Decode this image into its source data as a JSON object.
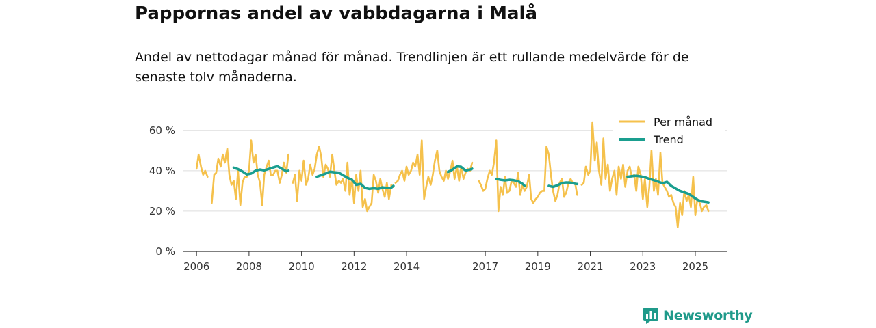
{
  "chart_data": {
    "type": "line",
    "title": "Pappornas andel av vabbdagarna i Malå",
    "subtitle": "Andel av nettodagar månad för månad. Trendlinjen är ett rullande medelvärde för de senaste tolv månaderna.",
    "x_range": [
      2005.5,
      2026.2
    ],
    "ylim": [
      0,
      65
    ],
    "y_ticks": [
      0,
      20,
      40,
      60
    ],
    "y_tick_labels": [
      "0 %",
      "20 %",
      "40 %",
      "60 %"
    ],
    "x_ticks": [
      2006,
      2008,
      2010,
      2012,
      2014,
      2017,
      2019,
      2021,
      2023,
      2025
    ],
    "x_tick_labels": [
      "2006",
      "2008",
      "2010",
      "2012",
      "2014",
      "2017",
      "2019",
      "2021",
      "2023",
      "2025"
    ],
    "legend_position": "top-right",
    "series": [
      {
        "name": "Per månad",
        "color": "#f5c14c",
        "segments": [
          {
            "x": [
              2006.0,
              2006.08,
              2006.17,
              2006.25,
              2006.33,
              2006.42
            ],
            "y": [
              41,
              48,
              42,
              38,
              40,
              37
            ]
          },
          {
            "x": [
              2006.58,
              2006.67,
              2006.75,
              2006.83,
              2006.92,
              2007.0,
              2007.08,
              2007.17,
              2007.25,
              2007.33,
              2007.42,
              2007.5,
              2007.58,
              2007.67,
              2007.75,
              2007.83,
              2007.92,
              2008.0,
              2008.08,
              2008.17,
              2008.25,
              2008.33,
              2008.42,
              2008.5,
              2008.58,
              2008.67,
              2008.75,
              2008.83,
              2008.92,
              2009.0,
              2009.08,
              2009.17,
              2009.25,
              2009.33,
              2009.42,
              2009.5
            ],
            "y": [
              24,
              38,
              39,
              46,
              42,
              48,
              44,
              51,
              38,
              33,
              35,
              26,
              40,
              23,
              34,
              37,
              37,
              40,
              55,
              44,
              48,
              38,
              34,
              23,
              38,
              42,
              45,
              38,
              38,
              40,
              40,
              34,
              38,
              44,
              39,
              48
            ]
          },
          {
            "x": [
              2009.67,
              2009.75,
              2009.83,
              2009.92,
              2010.0,
              2010.08,
              2010.17,
              2010.25,
              2010.33,
              2010.42,
              2010.5,
              2010.58,
              2010.67,
              2010.75,
              2010.83,
              2010.92,
              2011.0,
              2011.08,
              2011.17,
              2011.25,
              2011.33,
              2011.42,
              2011.5,
              2011.58,
              2011.67,
              2011.75,
              2011.83,
              2011.92,
              2012.0,
              2012.08,
              2012.17,
              2012.25,
              2012.33,
              2012.42,
              2012.5,
              2012.58,
              2012.67,
              2012.75,
              2012.83,
              2012.92,
              2013.0,
              2013.08,
              2013.17,
              2013.25,
              2013.33,
              2013.42,
              2013.5
            ],
            "y": [
              34,
              38,
              25,
              40,
              35,
              45,
              33,
              36,
              43,
              38,
              41,
              48,
              52,
              47,
              37,
              43,
              41,
              37,
              48,
              40,
              33,
              35,
              34,
              36,
              30,
              44,
              28,
              36,
              24,
              38,
              30,
              40,
              22,
              26,
              20,
              22,
              24,
              38,
              35,
              29,
              36,
              31,
              27,
              34,
              26,
              33,
              32
            ]
          },
          {
            "x": [
              2013.58,
              2013.67,
              2013.75,
              2013.83,
              2013.92,
              2014.0,
              2014.08,
              2014.17,
              2014.25,
              2014.33,
              2014.42,
              2014.5,
              2014.58,
              2014.67,
              2014.75,
              2014.83,
              2014.92,
              2015.0,
              2015.08,
              2015.17,
              2015.25,
              2015.33,
              2015.42,
              2015.5,
              2015.58,
              2015.67,
              2015.75,
              2015.83,
              2015.92,
              2016.0,
              2016.08,
              2016.17,
              2016.25,
              2016.33,
              2016.42,
              2016.5
            ],
            "y": [
              34,
              35,
              38,
              40,
              35,
              42,
              38,
              40,
              44,
              42,
              48,
              38,
              55,
              26,
              32,
              37,
              33,
              38,
              45,
              50,
              40,
              37,
              35,
              40,
              36,
              40,
              45,
              36,
              42,
              35,
              42,
              36,
              39,
              41,
              40,
              44
            ]
          },
          {
            "x": [
              2016.75,
              2016.83,
              2016.92,
              2017.0,
              2017.08,
              2017.17,
              2017.25,
              2017.33,
              2017.42,
              2017.5,
              2017.58,
              2017.67,
              2017.75,
              2017.83,
              2017.92,
              2018.0,
              2018.08,
              2018.17,
              2018.25,
              2018.33,
              2018.42,
              2018.5,
              2018.58,
              2018.67,
              2018.75,
              2018.83,
              2018.92,
              2019.0,
              2019.08,
              2019.17,
              2019.25,
              2019.33,
              2019.42,
              2019.5,
              2019.58,
              2019.67,
              2019.75,
              2019.83,
              2019.92,
              2020.0,
              2020.08,
              2020.17,
              2020.25,
              2020.33,
              2020.42,
              2020.5
            ],
            "y": [
              35,
              33,
              30,
              31,
              36,
              40,
              38,
              44,
              55,
              20,
              32,
              28,
              37,
              29,
              30,
              35,
              34,
              32,
              39,
              28,
              33,
              30,
              32,
              38,
              26,
              24,
              26,
              27,
              29,
              30,
              30,
              52,
              48,
              38,
              30,
              25,
              28,
              34,
              36,
              27,
              29,
              34,
              36,
              34,
              34,
              28
            ]
          },
          {
            "x": [
              2020.67,
              2020.75,
              2020.83,
              2020.92,
              2021.0,
              2021.08,
              2021.17,
              2021.25,
              2021.33,
              2021.42,
              2021.5,
              2021.58,
              2021.67,
              2021.75,
              2021.83,
              2021.92,
              2022.0,
              2022.08,
              2022.17,
              2022.25,
              2022.33,
              2022.42,
              2022.5,
              2022.58,
              2022.67,
              2022.75,
              2022.83,
              2022.92,
              2023.0,
              2023.08,
              2023.17,
              2023.25,
              2023.33,
              2023.42,
              2023.5,
              2023.58,
              2023.67,
              2023.75,
              2023.83,
              2023.92,
              2024.0,
              2024.08,
              2024.17,
              2024.25,
              2024.33,
              2024.42,
              2024.5,
              2024.58,
              2024.67,
              2024.75,
              2024.83,
              2024.92,
              2025.0,
              2025.08,
              2025.17,
              2025.25,
              2025.33,
              2025.42,
              2025.5
            ],
            "y": [
              33,
              34,
              42,
              38,
              40,
              64,
              45,
              54,
              40,
              33,
              56,
              36,
              43,
              30,
              36,
              40,
              28,
              42,
              36,
              43,
              32,
              40,
              42,
              37,
              38,
              30,
              42,
              38,
              26,
              36,
              22,
              32,
              50,
              30,
              36,
              28,
              49,
              34,
              32,
              30,
              27,
              28,
              24,
              22,
              12,
              24,
              18,
              30,
              25,
              28,
              22,
              37,
              18,
              26,
              24,
              20,
              22,
              23,
              20
            ]
          }
        ]
      },
      {
        "name": "Trend",
        "color": "#1a9e8f",
        "segments": [
          {
            "x": [
              2007.42,
              2007.58,
              2007.75,
              2007.92,
              2008.08,
              2008.25,
              2008.42,
              2008.58,
              2008.75,
              2008.92,
              2009.08,
              2009.25,
              2009.42,
              2009.5
            ],
            "y": [
              41.5,
              40.8,
              39.6,
              38.2,
              38.6,
              40.0,
              40.6,
              40.2,
              40.9,
              41.6,
              42.2,
              41.0,
              39.7,
              40.0
            ]
          },
          {
            "x": [
              2010.58,
              2010.75,
              2010.92,
              2011.08,
              2011.25,
              2011.42,
              2011.58,
              2011.75,
              2011.92,
              2012.08,
              2012.25,
              2012.42,
              2012.58,
              2012.75,
              2012.92,
              2013.08,
              2013.25,
              2013.42,
              2013.5
            ],
            "y": [
              37.0,
              37.8,
              38.6,
              39.5,
              39.2,
              39.0,
              37.8,
              36.5,
              35.5,
              33.0,
              33.5,
              31.5,
              31.0,
              31.3,
              31.0,
              31.8,
              31.5,
              31.6,
              32.5
            ]
          },
          {
            "x": [
              2015.58,
              2015.75,
              2015.92,
              2016.08,
              2016.25,
              2016.42,
              2016.5
            ],
            "y": [
              39.4,
              40.6,
              42.1,
              41.9,
              40.1,
              40.6,
              41.0
            ]
          },
          {
            "x": [
              2017.42,
              2017.58,
              2017.75,
              2017.92,
              2018.08,
              2018.25,
              2018.42,
              2018.5
            ],
            "y": [
              36.0,
              35.5,
              35.2,
              35.5,
              35.3,
              34.8,
              33.5,
              32.5
            ]
          },
          {
            "x": [
              2019.42,
              2019.58,
              2019.75,
              2019.92,
              2020.08,
              2020.25,
              2020.42,
              2020.5
            ],
            "y": [
              32.5,
              32.0,
              32.8,
              33.9,
              34.2,
              34.1,
              33.5,
              33.4
            ]
          },
          {
            "x": [
              2022.42,
              2022.58,
              2022.75,
              2022.92,
              2023.08,
              2023.25,
              2023.42,
              2023.58,
              2023.75,
              2023.92,
              2024.08,
              2024.25,
              2024.42,
              2024.58,
              2024.75,
              2024.92,
              2025.08,
              2025.25,
              2025.42,
              2025.5
            ],
            "y": [
              37.0,
              37.3,
              37.5,
              37.2,
              36.8,
              36.0,
              35.3,
              34.6,
              33.8,
              34.5,
              32.5,
              31.2,
              30.0,
              29.3,
              28.5,
              27.0,
              25.6,
              24.8,
              24.5,
              24.3
            ]
          }
        ]
      }
    ]
  },
  "branding": {
    "name": "Newsworthy",
    "icon": "chart-bars-icon",
    "color": "#1f9a8a"
  }
}
